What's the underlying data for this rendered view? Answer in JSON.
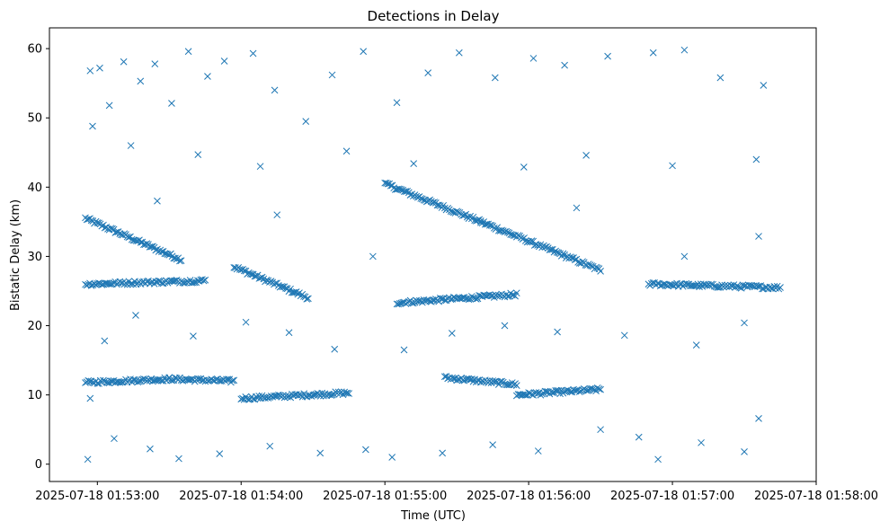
{
  "chart_data": {
    "type": "scatter",
    "title": "Detections in Delay",
    "xlabel": "Time (UTC)",
    "ylabel": "Bistatic Delay (km)",
    "x_ticks": [
      "2025-07-18 01:53:00",
      "2025-07-18 01:54:00",
      "2025-07-18 01:55:00",
      "2025-07-18 01:56:00",
      "2025-07-18 01:57:00",
      "2025-07-18 01:58:00"
    ],
    "y_ticks": [
      "0",
      "10",
      "20",
      "30",
      "40",
      "50",
      "60"
    ],
    "xlim": [
      "2025-07-18 01:52:40",
      "2025-07-18 01:58:00"
    ],
    "ylim": [
      -2.5,
      63
    ],
    "marker": "x",
    "grid": false,
    "color": "#1f77b4",
    "series": [
      {
        "tracks": [
          {
            "x": [
              "2025-07-18 01:52:55",
              "2025-07-18 01:53:35"
            ],
            "y": [
              35.5,
              29.5
            ]
          },
          {
            "x": [
              "2025-07-18 01:53:57",
              "2025-07-18 01:54:28"
            ],
            "y": [
              28.5,
              24
            ]
          },
          {
            "x": [
              "2025-07-18 01:55:00",
              "2025-07-18 01:55:40"
            ],
            "y": [
              40.5,
              35
            ]
          },
          {
            "x": [
              "2025-07-18 01:55:40",
              "2025-07-18 01:56:30"
            ],
            "y": [
              35,
              28
            ]
          },
          {
            "x": [
              "2025-07-18 01:55:05",
              "2025-07-18 01:55:55"
            ],
            "y": [
              23.3,
              24.5
            ]
          },
          {
            "x": [
              "2025-07-18 01:52:55",
              "2025-07-18 01:53:30"
            ],
            "y": [
              11.8,
              12.3
            ]
          },
          {
            "x": [
              "2025-07-18 01:53:30",
              "2025-07-18 01:53:57"
            ],
            "y": [
              12.3,
              12.0
            ]
          },
          {
            "x": [
              "2025-07-18 01:54:00",
              "2025-07-18 01:54:45"
            ],
            "y": [
              9.5,
              10.3
            ]
          },
          {
            "x": [
              "2025-07-18 01:55:25",
              "2025-07-18 01:55:55"
            ],
            "y": [
              12.5,
              11.5
            ]
          },
          {
            "x": [
              "2025-07-18 01:55:55",
              "2025-07-18 01:56:30"
            ],
            "y": [
              10.0,
              10.8
            ]
          },
          {
            "x": [
              "2025-07-18 01:56:50",
              "2025-07-18 01:57:45"
            ],
            "y": [
              26.0,
              25.5
            ]
          },
          {
            "x": [
              "2025-07-18 01:52:55",
              "2025-07-18 01:53:45"
            ],
            "y": [
              26.0,
              26.5
            ]
          }
        ],
        "scatter": [
          {
            "x": "2025-07-18 01:52:56",
            "y": 0.7
          },
          {
            "x": "2025-07-18 01:52:57",
            "y": 56.8
          },
          {
            "x": "2025-07-18 01:53:01",
            "y": 57.2
          },
          {
            "x": "2025-07-18 01:53:05",
            "y": 51.8
          },
          {
            "x": "2025-07-18 01:53:11",
            "y": 58.1
          },
          {
            "x": "2025-07-18 01:53:18",
            "y": 55.3
          },
          {
            "x": "2025-07-18 01:53:24",
            "y": 57.8
          },
          {
            "x": "2025-07-18 01:53:31",
            "y": 52.1
          },
          {
            "x": "2025-07-18 01:53:38",
            "y": 59.6
          },
          {
            "x": "2025-07-18 01:53:46",
            "y": 56.0
          },
          {
            "x": "2025-07-18 01:53:53",
            "y": 58.2
          },
          {
            "x": "2025-07-18 01:54:05",
            "y": 59.3
          },
          {
            "x": "2025-07-18 01:54:14",
            "y": 54.0
          },
          {
            "x": "2025-07-18 01:54:27",
            "y": 49.5
          },
          {
            "x": "2025-07-18 01:54:38",
            "y": 56.2
          },
          {
            "x": "2025-07-18 01:54:51",
            "y": 59.6
          },
          {
            "x": "2025-07-18 01:55:05",
            "y": 52.2
          },
          {
            "x": "2025-07-18 01:55:18",
            "y": 56.5
          },
          {
            "x": "2025-07-18 01:55:31",
            "y": 59.4
          },
          {
            "x": "2025-07-18 01:55:46",
            "y": 55.8
          },
          {
            "x": "2025-07-18 01:56:02",
            "y": 58.6
          },
          {
            "x": "2025-07-18 01:56:15",
            "y": 57.6
          },
          {
            "x": "2025-07-18 01:56:33",
            "y": 58.9
          },
          {
            "x": "2025-07-18 01:56:52",
            "y": 59.4
          },
          {
            "x": "2025-07-18 01:57:05",
            "y": 59.8
          },
          {
            "x": "2025-07-18 01:57:20",
            "y": 55.8
          },
          {
            "x": "2025-07-18 01:57:38",
            "y": 54.7
          },
          {
            "x": "2025-07-18 01:52:58",
            "y": 48.8
          },
          {
            "x": "2025-07-18 01:53:14",
            "y": 46.0
          },
          {
            "x": "2025-07-18 01:53:42",
            "y": 44.7
          },
          {
            "x": "2025-07-18 01:54:08",
            "y": 43.0
          },
          {
            "x": "2025-07-18 01:54:44",
            "y": 45.2
          },
          {
            "x": "2025-07-18 01:55:12",
            "y": 43.4
          },
          {
            "x": "2025-07-18 01:55:58",
            "y": 42.9
          },
          {
            "x": "2025-07-18 01:56:24",
            "y": 44.6
          },
          {
            "x": "2025-07-18 01:57:00",
            "y": 43.1
          },
          {
            "x": "2025-07-18 01:57:35",
            "y": 44.0
          },
          {
            "x": "2025-07-18 01:52:57",
            "y": 9.5
          },
          {
            "x": "2025-07-18 01:53:07",
            "y": 3.7
          },
          {
            "x": "2025-07-18 01:53:22",
            "y": 2.2
          },
          {
            "x": "2025-07-18 01:53:34",
            "y": 0.8
          },
          {
            "x": "2025-07-18 01:53:51",
            "y": 1.5
          },
          {
            "x": "2025-07-18 01:54:12",
            "y": 2.6
          },
          {
            "x": "2025-07-18 01:54:33",
            "y": 1.6
          },
          {
            "x": "2025-07-18 01:54:52",
            "y": 2.1
          },
          {
            "x": "2025-07-18 01:55:03",
            "y": 1.0
          },
          {
            "x": "2025-07-18 01:55:24",
            "y": 1.6
          },
          {
            "x": "2025-07-18 01:55:45",
            "y": 2.8
          },
          {
            "x": "2025-07-18 01:56:04",
            "y": 1.9
          },
          {
            "x": "2025-07-18 01:56:54",
            "y": 0.7
          },
          {
            "x": "2025-07-18 01:57:12",
            "y": 3.1
          },
          {
            "x": "2025-07-18 01:57:36",
            "y": 6.6
          },
          {
            "x": "2025-07-18 01:57:30",
            "y": 1.8
          },
          {
            "x": "2025-07-18 01:56:46",
            "y": 3.9
          },
          {
            "x": "2025-07-18 01:56:30",
            "y": 5.0
          },
          {
            "x": "2025-07-18 01:53:03",
            "y": 17.8
          },
          {
            "x": "2025-07-18 01:53:16",
            "y": 21.5
          },
          {
            "x": "2025-07-18 01:53:40",
            "y": 18.5
          },
          {
            "x": "2025-07-18 01:54:02",
            "y": 20.5
          },
          {
            "x": "2025-07-18 01:54:20",
            "y": 19.0
          },
          {
            "x": "2025-07-18 01:54:39",
            "y": 16.6
          },
          {
            "x": "2025-07-18 01:55:08",
            "y": 16.5
          },
          {
            "x": "2025-07-18 01:55:28",
            "y": 18.9
          },
          {
            "x": "2025-07-18 01:55:50",
            "y": 20.0
          },
          {
            "x": "2025-07-18 01:56:12",
            "y": 19.1
          },
          {
            "x": "2025-07-18 01:56:40",
            "y": 18.6
          },
          {
            "x": "2025-07-18 01:57:10",
            "y": 17.2
          },
          {
            "x": "2025-07-18 01:57:30",
            "y": 20.4
          },
          {
            "x": "2025-07-18 01:57:36",
            "y": 32.9
          },
          {
            "x": "2025-07-18 01:57:05",
            "y": 30.0
          },
          {
            "x": "2025-07-18 01:56:20",
            "y": 37.0
          },
          {
            "x": "2025-07-18 01:54:55",
            "y": 30.0
          },
          {
            "x": "2025-07-18 01:54:15",
            "y": 36.0
          },
          {
            "x": "2025-07-18 01:53:25",
            "y": 38.0
          }
        ]
      }
    ]
  }
}
